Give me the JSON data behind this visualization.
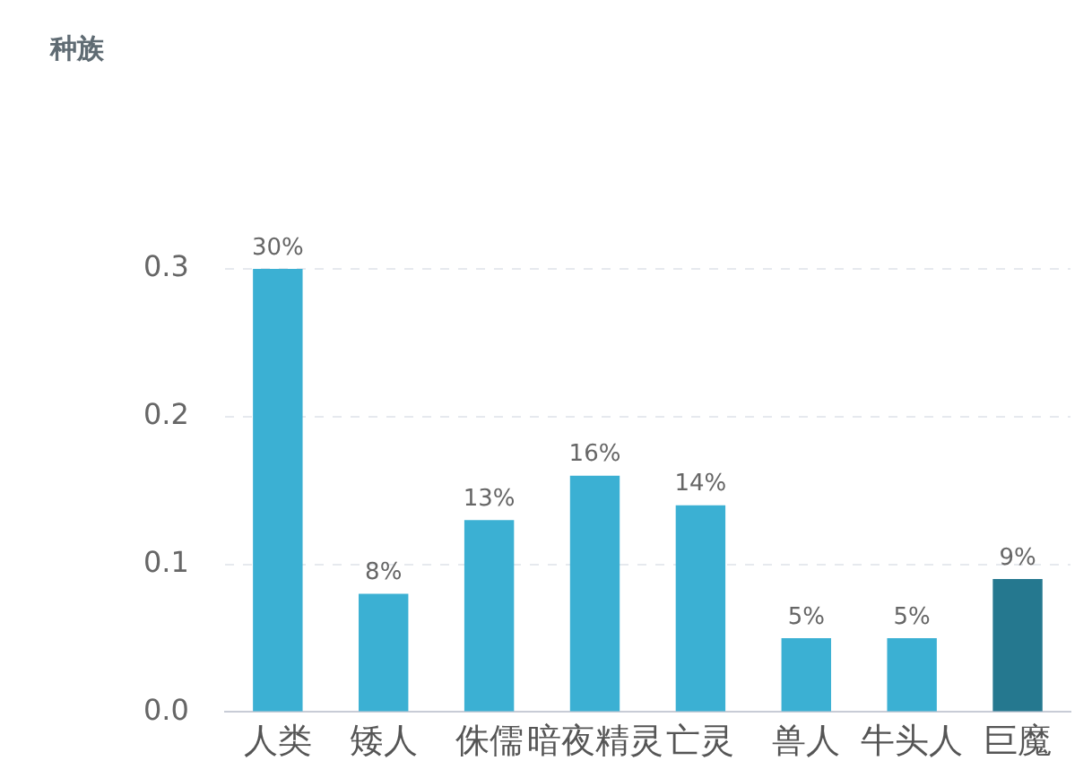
{
  "chart_data": {
    "type": "bar",
    "title": "种族",
    "categories": [
      "人类",
      "矮人",
      "侏儒",
      "暗夜精灵",
      "亡灵",
      "兽人",
      "牛头人",
      "巨魔"
    ],
    "values": [
      0.3,
      0.08,
      0.13,
      0.16,
      0.14,
      0.05,
      0.05,
      0.09
    ],
    "colors": [
      "#3bb0d3",
      "#3bb0d3",
      "#3bb0d3",
      "#3bb0d3",
      "#3bb0d3",
      "#3bb0d3",
      "#3bb0d3",
      "#25788f"
    ],
    "value_labels": [
      "30%",
      "8%",
      "13%",
      "16%",
      "14%",
      "5%",
      "5%",
      "9%"
    ],
    "ylim": [
      0,
      0.3
    ],
    "yticks": [
      {
        "value": 0,
        "label": "0.0"
      },
      0.1,
      0.2,
      0.3
    ],
    "grid": "y",
    "legend": false
  }
}
